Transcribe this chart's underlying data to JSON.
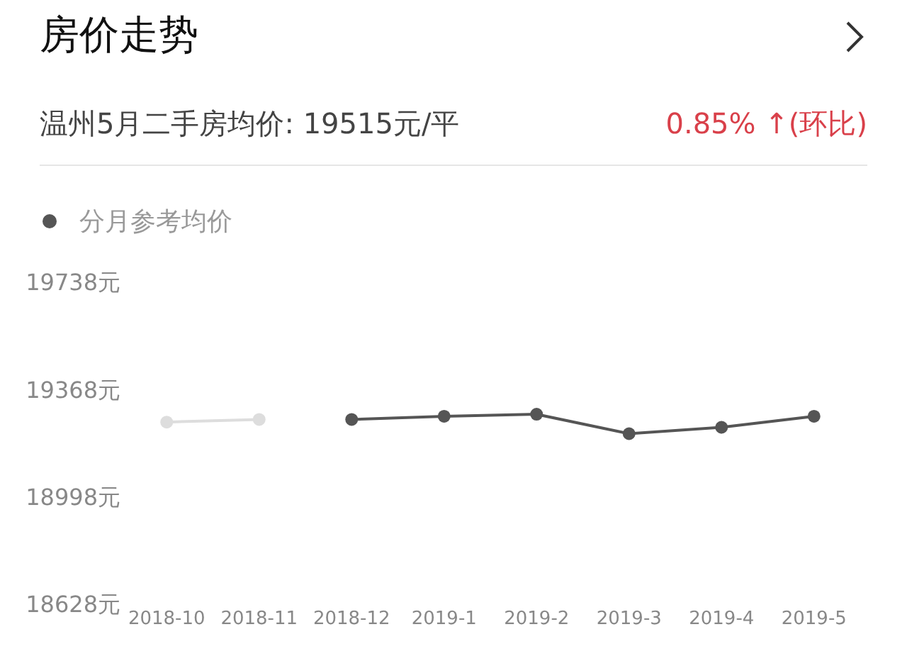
{
  "chart_data": {
    "type": "line",
    "title": "房价走势",
    "subtitle": "温州5月二手房均价: 19515元/平",
    "annotations": [
      "0.85% ↑(环比)"
    ],
    "categories": [
      "2018-10",
      "2018-11",
      "2018-12",
      "2019-1",
      "2019-2",
      "2019-3",
      "2019-4",
      "2019-5"
    ],
    "series": [
      {
        "color": "#dddddd",
        "values": [
          19256,
          19265,
          null,
          null,
          null,
          null,
          null,
          null
        ]
      },
      {
        "name": "分月参考均价",
        "color": "#555555",
        "values": [
          null,
          null,
          19265,
          19276,
          19283,
          19216,
          19238,
          19276
        ]
      }
    ],
    "ylim": [
      18628,
      19738
    ],
    "yticks": [
      {
        "value": 18628,
        "label": "18628元"
      },
      {
        "value": 18998,
        "label": "18998元"
      },
      {
        "value": 19368,
        "label": "19368元"
      },
      {
        "value": 19738,
        "label": "19738元"
      }
    ],
    "grid": false,
    "legend": "top left",
    "marker": "circle",
    "line_style": "solid"
  }
}
